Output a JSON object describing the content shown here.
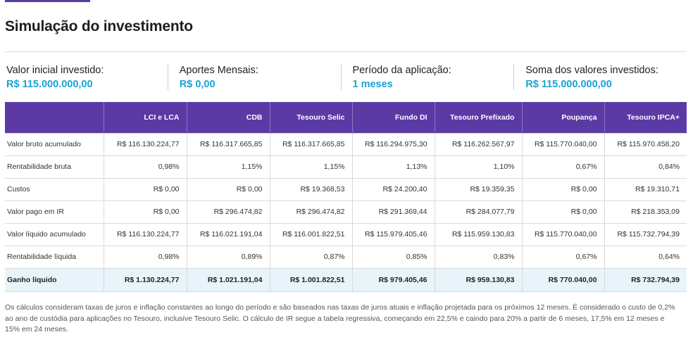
{
  "title": "Simulação do investimento",
  "summary": [
    {
      "label": "Valor inicial investido:",
      "value": "R$ 115.000.000,00"
    },
    {
      "label": "Aportes Mensais:",
      "value": "R$ 0,00"
    },
    {
      "label": "Período da aplicação:",
      "value": "1 meses"
    },
    {
      "label": "Soma dos valores investidos:",
      "value": "R$ 115.000.000,00"
    }
  ],
  "table": {
    "columns": [
      "",
      "LCI e LCA",
      "CDB",
      "Tesouro Selic",
      "Fundo DI",
      "Tesouro Prefixado",
      "Poupança",
      "Tesouro IPCA+"
    ],
    "rows": [
      {
        "label": "Valor bruto acumulado",
        "cells": [
          "R$ 116.130.224,77",
          "R$ 116.317.665,85",
          "R$ 116.317.665,85",
          "R$ 116.294.975,30",
          "R$ 116.262.567,97",
          "R$ 115.770.040,00",
          "R$ 115.970.458,20"
        ]
      },
      {
        "label": "Rentabilidade bruta",
        "cells": [
          "0,98%",
          "1,15%",
          "1,15%",
          "1,13%",
          "1,10%",
          "0,67%",
          "0,84%"
        ]
      },
      {
        "label": "Custos",
        "cells": [
          "R$ 0,00",
          "R$ 0,00",
          "R$ 19.368,53",
          "R$ 24.200,40",
          "R$ 19.359,35",
          "R$ 0,00",
          "R$ 19.310,71"
        ]
      },
      {
        "label": "Valor pago em IR",
        "cells": [
          "R$ 0,00",
          "R$ 296.474,82",
          "R$ 296.474,82",
          "R$ 291.369,44",
          "R$ 284.077,79",
          "R$ 0,00",
          "R$ 218.353,09"
        ]
      },
      {
        "label": "Valor líquido acumulado",
        "cells": [
          "R$ 116.130.224,77",
          "R$ 116.021.191,04",
          "R$ 116.001.822,51",
          "R$ 115.979.405,46",
          "R$ 115.959.130,83",
          "R$ 115.770.040,00",
          "R$ 115.732.794,39"
        ]
      },
      {
        "label": "Rentabilidade líquida",
        "cells": [
          "0,98%",
          "0,89%",
          "0,87%",
          "0,85%",
          "0,83%",
          "0,67%",
          "0,64%"
        ]
      },
      {
        "label": "Ganho líquido",
        "cells": [
          "R$ 1.130.224,77",
          "R$ 1.021.191,04",
          "R$ 1.001.822,51",
          "R$ 979.405,46",
          "R$ 959.130,83",
          "R$ 770.040,00",
          "R$ 732.794,39"
        ]
      }
    ]
  },
  "footnote": "Os cálculos consideram taxas de juros e inflação constantes ao longo do período e são baseados nas taxas de juros atuais e inflação projetada para os próximos 12 meses. É considerado o custo de 0,2% ao ano de custódia para aplicações no Tesouro, inclusive Tesouro Selic. O cálculo de IR segue a tabela regressiva, começando em 22,5% e caindo para 20% a partir de 6 meses, 17,5% em 12 meses e 15% em 24 meses.",
  "colors": {
    "header_bg": "#5b3aa5",
    "accent_value": "#18a3d6",
    "total_row_bg": "#e8f4fa"
  }
}
